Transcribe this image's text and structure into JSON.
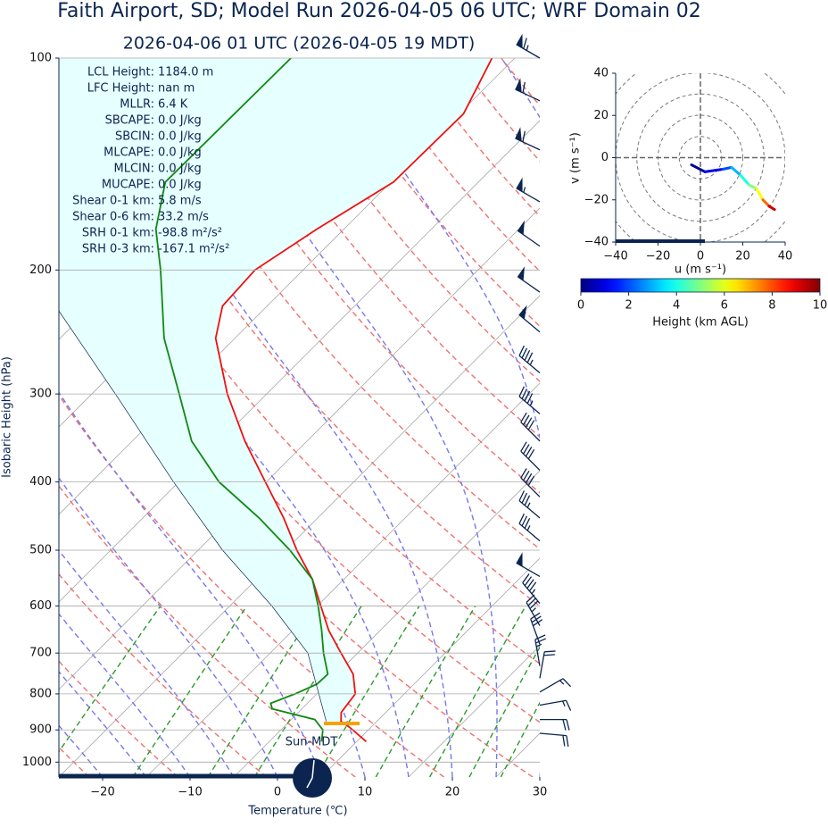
{
  "title": "Faith Airport, SD; Model Run 2026-04-05 06 UTC; WRF Domain 02",
  "chart_data": [
    {
      "type": "skewt",
      "subtitle": "2026-04-06 01 UTC  (2026-04-05 19 MDT)",
      "xlabel": "Temperature (℃)",
      "ylabel": "Isobaric Height (hPa)",
      "xlim": [
        -25,
        30
      ],
      "xticks": [
        {
          "value": -20,
          "label": "−20"
        },
        {
          "value": -10,
          "label": "−10"
        },
        0,
        10,
        20,
        30
      ],
      "ylim": [
        100,
        1050
      ],
      "log_y": true,
      "grid": true,
      "yticks": [
        100,
        200,
        300,
        400,
        500,
        600,
        700,
        800,
        900,
        1000
      ],
      "series": [
        {
          "color": "#ee1111",
          "y": [
            100,
            120,
            150,
            175,
            200,
            225,
            250,
            300,
            350,
            400,
            450,
            500,
            550,
            600,
            650,
            700,
            750,
            800,
            850,
            875,
            895,
            935
          ],
          "x": [
            -57.6,
            -54.5,
            -54.7,
            -58.1,
            -60.5,
            -60.1,
            -57.2,
            -49.5,
            -42.1,
            -35.1,
            -28.9,
            -23.7,
            -18.6,
            -14.6,
            -10.9,
            -6.9,
            -3.1,
            -0.6,
            -0.1,
            0.9,
            2.8,
            6.1
          ]
        },
        {
          "color": "#118811",
          "y": [
            100,
            150,
            175,
            200,
            250,
            300,
            350,
            400,
            450,
            500,
            550,
            600,
            650,
            700,
            750,
            775,
            800,
            825,
            840,
            870,
            900,
            935
          ],
          "x": [
            -80.6,
            -80.8,
            -76.5,
            -71.3,
            -63.1,
            -55,
            -48.2,
            -40.4,
            -31.7,
            -24.5,
            -18.6,
            -14.9,
            -11.7,
            -8.9,
            -6,
            -6.1,
            -7.5,
            -9.2,
            -8.4,
            -2.3,
            -0.2,
            1
          ]
        },
        {
          "color": "#0b2550",
          "y": [
            875,
            700,
            600,
            500,
            400,
            300,
            225
          ],
          "x": [
            -0.8,
            -10.7,
            -20.2,
            -32.2,
            -45.6,
            -62.3,
            -79.2
          ]
        }
      ],
      "wind_barbs": {
        "color": "#0b2550",
        "pressure": [
          100,
          115,
          135,
          160,
          185,
          215,
          245,
          280,
          320,
          350,
          385,
          420,
          450,
          485,
          545,
          595,
          640,
          680,
          730,
          760,
          795,
          830,
          870,
          910
        ],
        "speed": [
          65,
          60,
          60,
          55,
          50,
          50,
          50,
          45,
          45,
          40,
          40,
          40,
          35,
          35,
          50,
          45,
          35,
          30,
          25,
          20,
          15,
          15,
          20,
          20
        ],
        "direction": [
          300,
          295,
          295,
          300,
          305,
          305,
          310,
          310,
          310,
          315,
          315,
          315,
          310,
          310,
          300,
          320,
          330,
          340,
          350,
          10,
          60,
          80,
          90,
          95
        ]
      },
      "annotations": [
        {
          "label": "LCL Height:",
          "text": "1184.0 m"
        },
        {
          "label": "LFC Height:",
          "text": "nan m"
        },
        {
          "label": "MLLR:",
          "text": "6.4 K"
        },
        {
          "label": "SBCAPE:",
          "text": "0.0 J/kg"
        },
        {
          "label": "SBCIN:",
          "text": "0.0 J/kg"
        },
        {
          "label": "MLCAPE:",
          "text": "0.0 J/kg"
        },
        {
          "label": "MLCIN:",
          "text": "0.0 J/kg"
        },
        {
          "label": "MUCAPE:",
          "text": "0.0 J/kg"
        },
        {
          "label": "Shear 0-1 km:",
          "text": "5.8 m/s"
        },
        {
          "label": "Shear 0-6 km:",
          "text": "33.2 m/s"
        },
        {
          "label": "SRH 0-1 km:",
          "text": "-98.8 m²/s²"
        },
        {
          "label": "SRH 0-3 km:",
          "text": "-167.1 m²/s²"
        }
      ],
      "clock_label": "Sun-MDT"
    },
    {
      "type": "hodograph",
      "xlabel": "u (m s⁻¹)",
      "ylabel": "v (m s⁻¹)",
      "xlim": [
        -40,
        40
      ],
      "ylim": [
        -40,
        40
      ],
      "xticks": [
        {
          "value": -40,
          "label": "−40"
        },
        {
          "value": -20,
          "label": "−20"
        },
        0,
        20,
        40
      ],
      "yticks": [
        {
          "value": -40,
          "label": "−40"
        },
        {
          "value": -20,
          "label": "−20"
        },
        0,
        20,
        40
      ],
      "u": [
        -4.2,
        2.1,
        10.5,
        14.7,
        19,
        23,
        26.5,
        29.5,
        32.4,
        35
      ],
      "v": [
        -3.4,
        -6.7,
        -5.5,
        -4.6,
        -8.4,
        -13,
        -14.7,
        -20,
        -23,
        -24.6
      ],
      "height": [
        0,
        0.5,
        1.5,
        2.5,
        3.5,
        4.5,
        5.5,
        7,
        8.5,
        10
      ],
      "colorbar": {
        "label": "Height (km AGL)",
        "lim": [
          0,
          10
        ],
        "ticks": [
          0,
          2,
          4,
          6,
          8,
          10
        ],
        "colormap": "jet"
      }
    }
  ]
}
